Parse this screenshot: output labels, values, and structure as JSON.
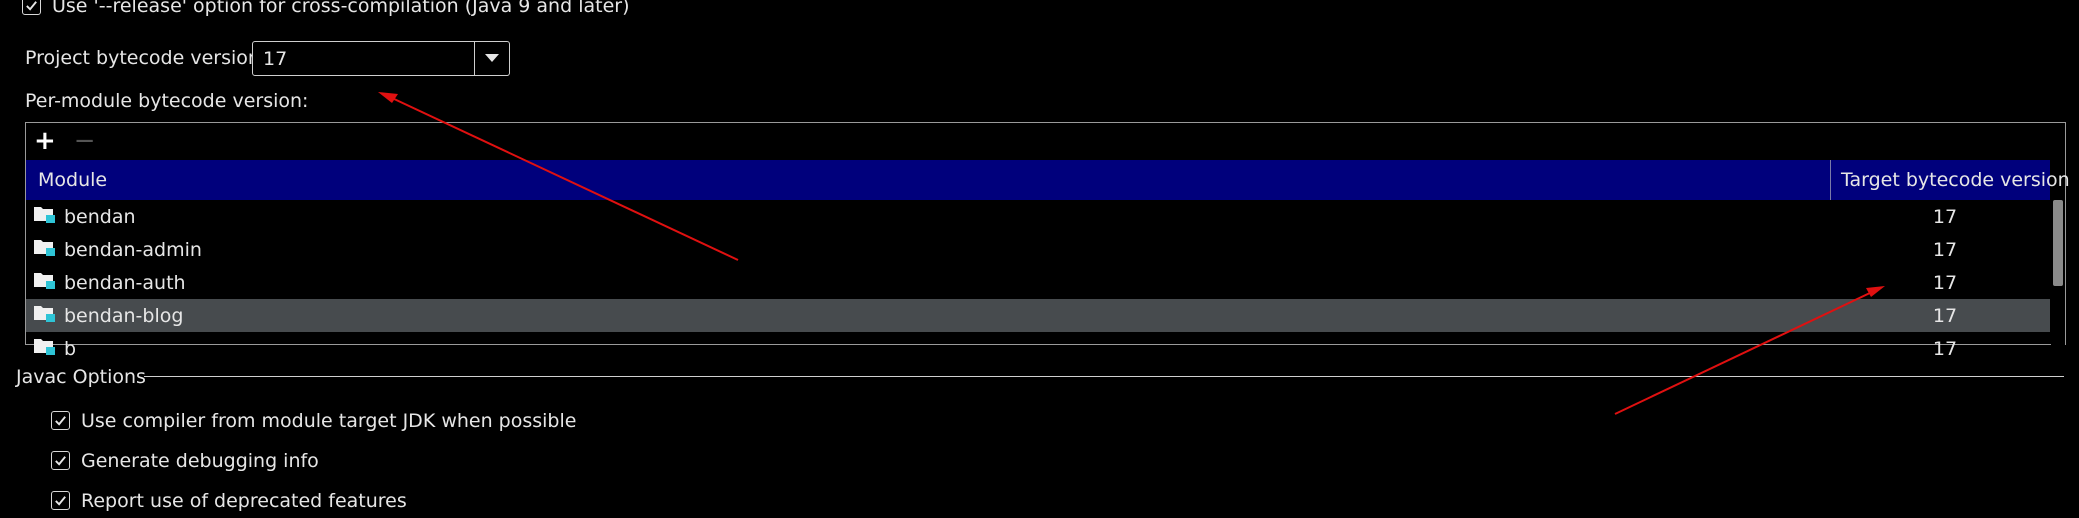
{
  "release_option": {
    "label": "Use '--release' option for cross-compilation (Java 9 and later)",
    "checked": true
  },
  "project_bytecode": {
    "label": "Project bytecode version:",
    "value": "17"
  },
  "per_module": {
    "label": "Per-module bytecode version:",
    "add_label": "+",
    "remove_label": "−",
    "columns": {
      "module": "Module",
      "target": "Target bytecode version"
    },
    "rows": [
      {
        "module": "bendan",
        "target": "17"
      },
      {
        "module": "bendan-admin",
        "target": "17"
      },
      {
        "module": "bendan-auth",
        "target": "17"
      },
      {
        "module": "bendan-blog",
        "target": "17",
        "selected": true
      },
      {
        "module": "b",
        "target": "17"
      }
    ]
  },
  "javac": {
    "title": "Javac Options",
    "options": [
      {
        "label": "Use compiler from module target JDK when possible",
        "checked": true
      },
      {
        "label": "Generate debugging info",
        "checked": true
      },
      {
        "label": "Report use of deprecated features",
        "checked": true
      }
    ]
  },
  "colors": {
    "header_bg": "#00007c",
    "selected_row": "#474b4e",
    "annotation_arrow": "#e01010"
  }
}
